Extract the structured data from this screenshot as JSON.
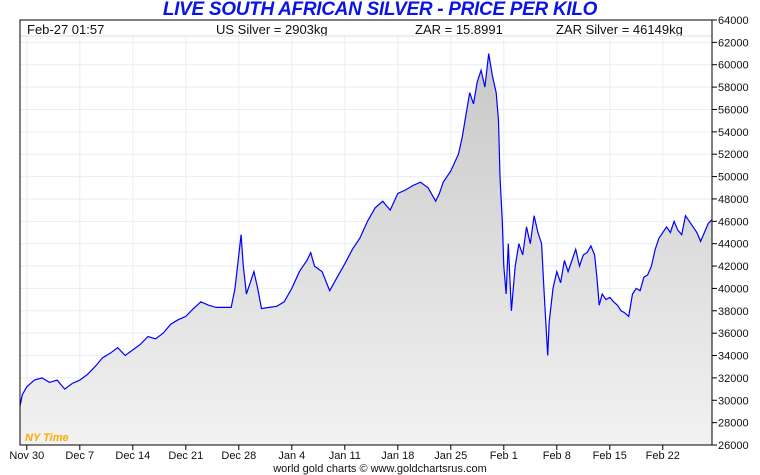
{
  "header": {
    "title": "LIVE SOUTH AFRICAN SILVER - PRICE PER KILO",
    "datetime": "Feb-27  01:57",
    "us_silver": "US Silver = 2903kg",
    "zar": "ZAR = 15.8991",
    "zar_silver": "ZAR Silver = 46149kg"
  },
  "footer": "world gold charts © www.goldchartsrus.com",
  "timezone_label": "NY Time",
  "colors": {
    "line": "#0000ff",
    "fill": "#d8d8d8",
    "timezone": "#ffaa00",
    "title": "#0a14e6"
  },
  "chart_data": {
    "type": "area",
    "title": "LIVE SOUTH AFRICAN SILVER - PRICE PER KILO",
    "xlabel": "",
    "ylabel": "",
    "ylim": [
      26000,
      64000
    ],
    "yticks": [
      26000,
      28000,
      30000,
      32000,
      34000,
      36000,
      38000,
      40000,
      42000,
      44000,
      46000,
      48000,
      50000,
      52000,
      54000,
      56000,
      58000,
      60000,
      62000,
      64000
    ],
    "xticks": [
      {
        "day": 0,
        "label": "Nov 30"
      },
      {
        "day": 7,
        "label": "Dec 7"
      },
      {
        "day": 14,
        "label": "Dec 14"
      },
      {
        "day": 21,
        "label": "Dec 21"
      },
      {
        "day": 28,
        "label": "Dec 28"
      },
      {
        "day": 35,
        "label": "Jan 4"
      },
      {
        "day": 42,
        "label": "Jan 11"
      },
      {
        "day": 49,
        "label": "Jan 18"
      },
      {
        "day": 56,
        "label": "Jan 25"
      },
      {
        "day": 63,
        "label": "Feb 1"
      },
      {
        "day": 70,
        "label": "Feb 8"
      },
      {
        "day": 77,
        "label": "Feb 15"
      },
      {
        "day": 84,
        "label": "Feb 22"
      }
    ],
    "xlim": [
      -0.9,
      90.5
    ],
    "grid": true,
    "series": [
      {
        "name": "ZAR Silver",
        "points": [
          [
            -0.9,
            29500
          ],
          [
            -0.6,
            30500
          ],
          [
            0,
            31200
          ],
          [
            1,
            31800
          ],
          [
            2,
            32000
          ],
          [
            3,
            31600
          ],
          [
            4,
            31800
          ],
          [
            5,
            31000
          ],
          [
            6,
            31500
          ],
          [
            7,
            31800
          ],
          [
            8,
            32300
          ],
          [
            9,
            33000
          ],
          [
            10,
            33800
          ],
          [
            11,
            34200
          ],
          [
            12,
            34700
          ],
          [
            13,
            34000
          ],
          [
            14,
            34500
          ],
          [
            15,
            35000
          ],
          [
            16,
            35700
          ],
          [
            17,
            35500
          ],
          [
            18,
            36000
          ],
          [
            19,
            36800
          ],
          [
            20,
            37200
          ],
          [
            21,
            37500
          ],
          [
            22,
            38200
          ],
          [
            23,
            38800
          ],
          [
            24,
            38500
          ],
          [
            25,
            38300
          ],
          [
            26,
            38300
          ],
          [
            27,
            38300
          ],
          [
            27.5,
            40000
          ],
          [
            28,
            43000
          ],
          [
            28.3,
            44800
          ],
          [
            28.6,
            42000
          ],
          [
            29,
            39500
          ],
          [
            29.5,
            40500
          ],
          [
            30,
            41500
          ],
          [
            30.5,
            40000
          ],
          [
            31,
            38200
          ],
          [
            32,
            38300
          ],
          [
            33,
            38400
          ],
          [
            34,
            38800
          ],
          [
            35,
            40000
          ],
          [
            36,
            41500
          ],
          [
            37,
            42500
          ],
          [
            37.5,
            43200
          ],
          [
            38,
            42000
          ],
          [
            39,
            41500
          ],
          [
            40,
            39800
          ],
          [
            41,
            41000
          ],
          [
            42,
            42200
          ],
          [
            43,
            43500
          ],
          [
            44,
            44500
          ],
          [
            45,
            46000
          ],
          [
            46,
            47200
          ],
          [
            47,
            47800
          ],
          [
            48,
            47000
          ],
          [
            49,
            48500
          ],
          [
            50,
            48800
          ],
          [
            51,
            49200
          ],
          [
            52,
            49500
          ],
          [
            53,
            49000
          ],
          [
            54,
            47800
          ],
          [
            54.5,
            48500
          ],
          [
            55,
            49500
          ],
          [
            56,
            50500
          ],
          [
            57,
            52000
          ],
          [
            57.5,
            53500
          ],
          [
            58,
            55500
          ],
          [
            58.5,
            57500
          ],
          [
            59,
            56500
          ],
          [
            59.5,
            58500
          ],
          [
            60,
            59500
          ],
          [
            60.5,
            58000
          ],
          [
            61,
            61000
          ],
          [
            61.5,
            59000
          ],
          [
            62,
            57500
          ],
          [
            62.3,
            55000
          ],
          [
            62.5,
            50000
          ],
          [
            62.8,
            46000
          ],
          [
            63,
            42000
          ],
          [
            63.3,
            39500
          ],
          [
            63.6,
            44000
          ],
          [
            64,
            38000
          ],
          [
            64.5,
            42000
          ],
          [
            65,
            44000
          ],
          [
            65.5,
            43000
          ],
          [
            66,
            45500
          ],
          [
            66.5,
            44000
          ],
          [
            67,
            46500
          ],
          [
            67.5,
            45000
          ],
          [
            68,
            44000
          ],
          [
            68.3,
            40000
          ],
          [
            68.8,
            34000
          ],
          [
            69,
            37000
          ],
          [
            69.5,
            40000
          ],
          [
            70,
            41500
          ],
          [
            70.5,
            40500
          ],
          [
            71,
            42500
          ],
          [
            71.5,
            41500
          ],
          [
            72,
            42500
          ],
          [
            72.5,
            43500
          ],
          [
            73,
            42000
          ],
          [
            73.5,
            43000
          ],
          [
            74,
            43200
          ],
          [
            74.5,
            43800
          ],
          [
            75,
            43000
          ],
          [
            75.3,
            41000
          ],
          [
            75.6,
            38500
          ],
          [
            76,
            39500
          ],
          [
            76.5,
            39000
          ],
          [
            77,
            39200
          ],
          [
            77.5,
            38800
          ],
          [
            78,
            38500
          ],
          [
            78.5,
            38000
          ],
          [
            79,
            37800
          ],
          [
            79.5,
            37500
          ],
          [
            80,
            39500
          ],
          [
            80.5,
            40000
          ],
          [
            81,
            39800
          ],
          [
            81.5,
            41000
          ],
          [
            82,
            41200
          ],
          [
            82.5,
            42000
          ],
          [
            83,
            43500
          ],
          [
            83.5,
            44500
          ],
          [
            84,
            45000
          ],
          [
            84.5,
            45500
          ],
          [
            85,
            45000
          ],
          [
            85.5,
            46000
          ],
          [
            86,
            45200
          ],
          [
            86.5,
            44800
          ],
          [
            87,
            46500
          ],
          [
            87.5,
            46000
          ],
          [
            88,
            45500
          ],
          [
            88.5,
            45000
          ],
          [
            89,
            44200
          ],
          [
            89.5,
            45000
          ],
          [
            90,
            45800
          ],
          [
            90.5,
            46149
          ]
        ]
      }
    ]
  }
}
